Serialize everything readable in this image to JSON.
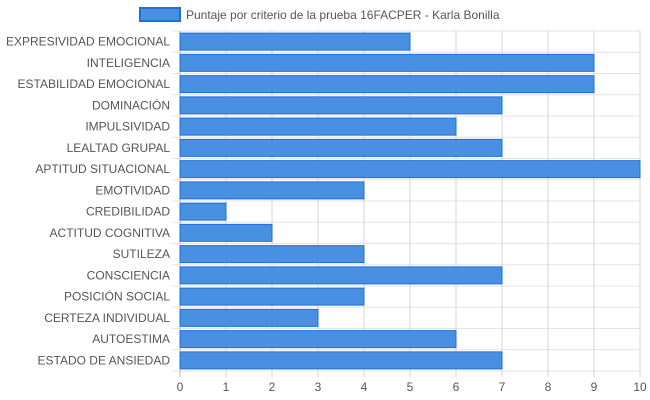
{
  "chart_data": {
    "type": "bar",
    "orientation": "horizontal",
    "title": "",
    "xlabel": "",
    "ylabel": "",
    "xlim": [
      0,
      10
    ],
    "xticks": [
      "0",
      "1",
      "2",
      "3",
      "4",
      "5",
      "6",
      "7",
      "8",
      "9",
      "10"
    ],
    "grid": true,
    "legend_position": "top",
    "categories": [
      "EXPRESIVIDAD EMOCIONAL",
      "INTELIGENCIA",
      "ESTABILIDAD EMOCIONAL",
      "DOMINACIÓN",
      "IMPULSIVIDAD",
      "LEALTAD GRUPAL",
      "APTITUD SITUACIONAL",
      "EMOTIVIDAD",
      "CREDIBILIDAD",
      "ACTITUD COGNITIVA",
      "SUTILEZA",
      "CONSCIENCIA",
      "POSICIÓN SOCIAL",
      "CERTEZA INDIVIDUAL",
      "AUTOESTIMA",
      "ESTADO DE ANSIEDAD"
    ],
    "series": [
      {
        "name": "Puntaje por criterio de la prueba 16FACPER - Karla Bonilla",
        "color": "#4a90e2",
        "border_color": "#1e6fd9",
        "values": [
          5,
          9,
          9,
          7,
          6,
          7,
          10,
          4,
          1,
          2,
          4,
          7,
          4,
          3,
          6,
          7
        ]
      }
    ]
  }
}
